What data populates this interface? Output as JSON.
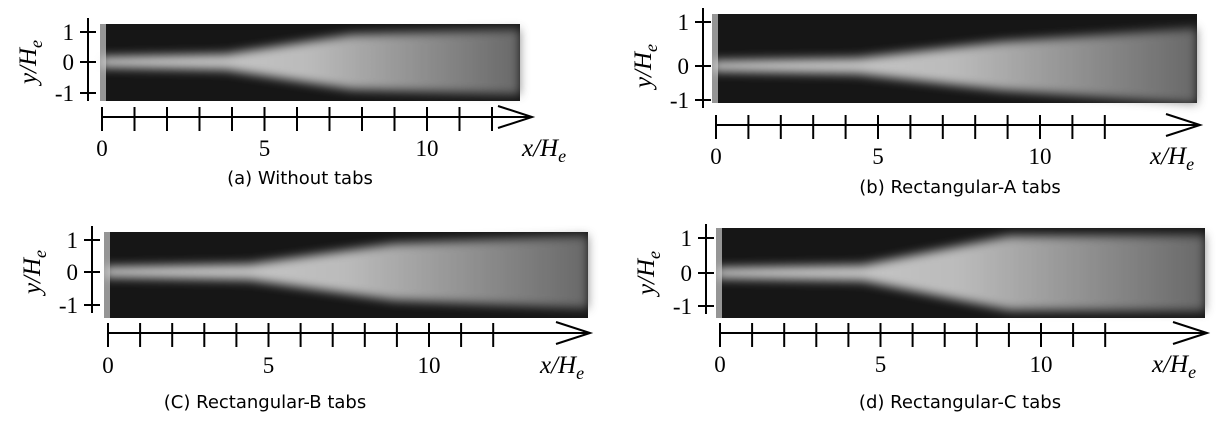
{
  "panels": [
    {
      "caption": "(a) Without tabs",
      "x_label": "x/H",
      "x_label_sub": "e",
      "y_label": "y/H",
      "y_label_sub": "e",
      "x_tick_labels": [
        "0",
        "5",
        "10"
      ],
      "y_tick_labels": [
        "1",
        "0",
        "-1"
      ]
    },
    {
      "caption": "(b) Rectangular-A tabs",
      "x_label": "x/H",
      "x_label_sub": "e",
      "y_label": "y/H",
      "y_label_sub": "e",
      "x_tick_labels": [
        "0",
        "5",
        "10"
      ],
      "y_tick_labels": [
        "1",
        "0",
        "-1"
      ]
    },
    {
      "caption": "(C) Rectangular-B tabs",
      "x_label": "x/H",
      "x_label_sub": "e",
      "y_label": "y/H",
      "y_label_sub": "e",
      "x_tick_labels": [
        "0",
        "5",
        "10"
      ],
      "y_tick_labels": [
        "1",
        "0",
        "-1"
      ]
    },
    {
      "caption": "(d) Rectangular-C tabs",
      "x_label": "x/H",
      "x_label_sub": "e",
      "y_label": "y/H",
      "y_label_sub": "e",
      "x_tick_labels": [
        "0",
        "5",
        "10"
      ],
      "y_tick_labels": [
        "1",
        "0",
        "-1"
      ]
    }
  ]
}
